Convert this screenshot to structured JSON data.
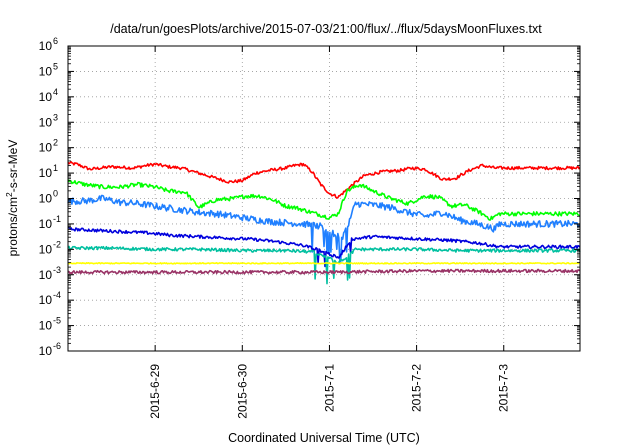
{
  "chart_data": {
    "type": "line",
    "title": "/data/run/goesPlots/archive/2015-07-03/21:00/flux/../flux/5daysMoonFluxes.txt",
    "xlabel": "Coordinated Universal Time (UTC)",
    "ylabel": {
      "prefix": "protons/cm",
      "sup": "2",
      "suffix": "-s-sr-MeV"
    },
    "y_scale": "log",
    "ylim": [
      "1e-6",
      "1e6"
    ],
    "y_ticks": [
      {
        "base": "10",
        "exp": "-6"
      },
      {
        "base": "10",
        "exp": "-5"
      },
      {
        "base": "10",
        "exp": "-4"
      },
      {
        "base": "10",
        "exp": "-3"
      },
      {
        "base": "10",
        "exp": "-2"
      },
      {
        "base": "10",
        "exp": "-1"
      },
      {
        "base": "10",
        "exp": "0"
      },
      {
        "base": "10",
        "exp": "1"
      },
      {
        "base": "10",
        "exp": "2"
      },
      {
        "base": "10",
        "exp": "3"
      },
      {
        "base": "10",
        "exp": "4"
      },
      {
        "base": "10",
        "exp": "5"
      },
      {
        "base": "10",
        "exp": "6"
      }
    ],
    "xlim": [
      "2015-06-28 00:00",
      "2015-07-03 21:00"
    ],
    "x_ticks": [
      "2015-6-29",
      "2015-6-30",
      "2015-7-1",
      "2015-7-2",
      "2015-7-3"
    ],
    "grid": true,
    "series": [
      {
        "color": "#ff0000",
        "x_days": [
          0,
          0.1,
          0.25,
          0.5,
          0.75,
          0.9,
          1.0,
          1.15,
          1.3,
          1.5,
          1.7,
          1.85,
          2.0,
          2.15,
          2.3,
          2.5,
          2.6,
          2.7,
          2.8,
          2.9,
          3.0,
          3.1,
          3.15,
          3.25,
          3.4,
          3.6,
          3.8,
          3.95,
          4.1,
          4.2,
          4.3,
          4.45,
          4.6,
          4.75,
          4.9
        ],
        "log10_flux": [
          1.4,
          1.35,
          1.15,
          1.25,
          1.2,
          1.3,
          1.35,
          1.25,
          1.2,
          1.0,
          0.8,
          0.65,
          0.7,
          1.0,
          1.1,
          1.2,
          1.3,
          1.35,
          1.05,
          0.55,
          0.2,
          0.05,
          0.2,
          0.5,
          0.9,
          1.05,
          1.1,
          1.2,
          1.15,
          0.95,
          0.75,
          0.8,
          1.1,
          1.3,
          1.2
        ],
        "noise": 0.06
      },
      {
        "color": "#00ff00",
        "x_days": [
          0,
          0.2,
          0.4,
          0.6,
          0.8,
          1.0,
          1.15,
          1.35,
          1.5,
          1.7,
          1.9,
          2.05,
          2.2,
          2.35,
          2.5,
          2.6,
          2.7,
          2.8,
          2.9,
          3.0,
          3.1,
          3.2,
          3.35,
          3.5,
          3.7,
          3.9,
          4.1,
          4.25,
          4.4,
          4.55,
          4.7,
          4.85,
          4.95
        ],
        "log10_flux": [
          0.7,
          0.55,
          0.45,
          0.45,
          0.55,
          0.45,
          0.3,
          0.25,
          -0.35,
          -0.05,
          0.0,
          0.1,
          0.1,
          -0.05,
          -0.3,
          -0.35,
          -0.45,
          -0.55,
          -0.65,
          -0.75,
          -0.6,
          0.3,
          0.55,
          0.3,
          0.0,
          -0.2,
          0.1,
          0.05,
          -0.3,
          -0.25,
          -0.5,
          -0.8,
          -0.6
        ],
        "noise": 0.08
      },
      {
        "color": "#1f7fff",
        "x_days": [
          0,
          0.2,
          0.4,
          0.6,
          0.8,
          1.0,
          1.2,
          1.4,
          1.5,
          1.7,
          1.9,
          2.1,
          2.3,
          2.5,
          2.7,
          2.9,
          3.0,
          3.15,
          3.3,
          3.5,
          3.7,
          3.9,
          4.1,
          4.3,
          4.5,
          4.7,
          4.9,
          4.95
        ],
        "log10_flux": [
          -0.1,
          -0.1,
          0.0,
          -0.15,
          -0.2,
          -0.3,
          -0.4,
          -0.5,
          -0.55,
          -0.6,
          -0.7,
          -0.8,
          -0.9,
          -0.95,
          -1.0,
          -1.1,
          -1.3,
          -1.6,
          -0.2,
          -0.25,
          -0.35,
          -0.55,
          -0.7,
          -0.55,
          -0.85,
          -1.0,
          -1.2,
          -1.0
        ],
        "noise": 0.13
      },
      {
        "color": "#0000dd",
        "x_days": [
          0,
          0.3,
          0.6,
          0.9,
          1.2,
          1.5,
          1.8,
          2.1,
          2.4,
          2.7,
          2.95,
          3.1,
          3.25,
          3.5,
          3.8,
          4.1,
          4.4,
          4.7,
          4.95
        ],
        "log10_flux": [
          -1.2,
          -1.25,
          -1.3,
          -1.35,
          -1.45,
          -1.5,
          -1.55,
          -1.6,
          -1.7,
          -1.85,
          -2.1,
          -2.35,
          -1.6,
          -1.5,
          -1.55,
          -1.6,
          -1.65,
          -1.75,
          -1.9
        ],
        "noise": 0.06
      },
      {
        "color": "#00c0a0",
        "x_days": [
          0,
          0.5,
          1.0,
          1.5,
          2.0,
          2.5,
          2.8,
          2.95,
          3.1,
          3.2,
          3.3,
          3.6,
          4.0,
          4.5,
          4.95
        ],
        "log10_flux": [
          -1.95,
          -1.95,
          -2.0,
          -2.0,
          -2.05,
          -2.05,
          -2.1,
          -2.3,
          -2.5,
          -2.3,
          -2.0,
          -2.0,
          -2.0,
          -2.05,
          -2.05
        ],
        "noise": 0.06
      },
      {
        "color": "#ffff00",
        "x_days": [
          0,
          1.0,
          2.0,
          3.0,
          4.0,
          4.95
        ],
        "log10_flux": [
          -2.55,
          -2.55,
          -2.55,
          -2.55,
          -2.55,
          -2.55
        ],
        "noise": 0.02
      },
      {
        "color": "#993366",
        "x_days": [
          0,
          1.0,
          2.0,
          3.0,
          4.0,
          4.95
        ],
        "log10_flux": [
          -2.9,
          -2.9,
          -2.9,
          -2.9,
          -2.85,
          -2.85
        ],
        "noise": 0.06
      }
    ]
  }
}
